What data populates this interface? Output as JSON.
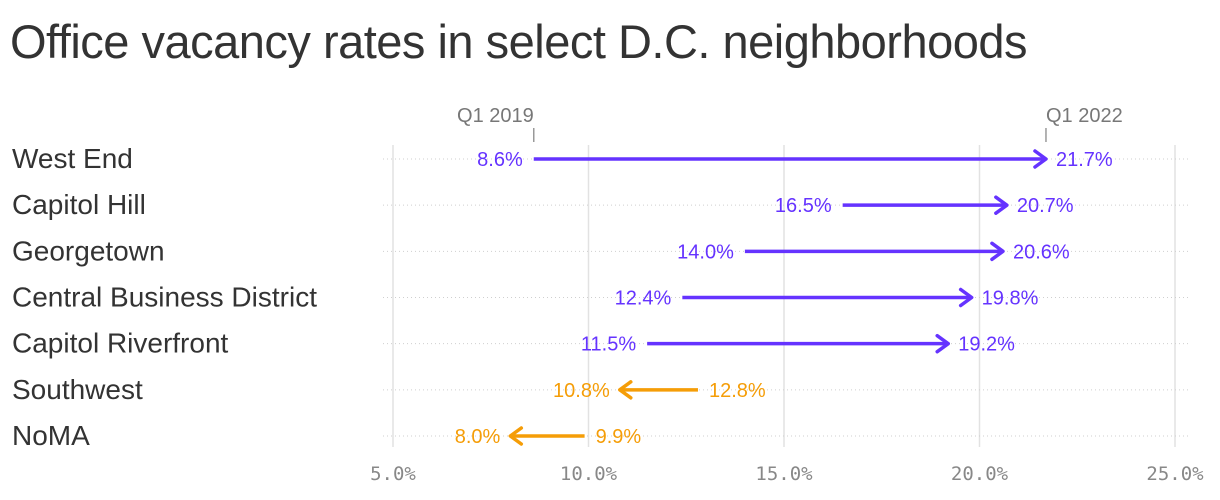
{
  "chart_data": {
    "type": "arrow",
    "title": "Office vacancy rates in select D.C. neighborhoods",
    "from_label": "Q1 2019",
    "to_label": "Q1 2022",
    "x_ticks": [
      "5.0%",
      "10.0%",
      "15.0%",
      "20.0%",
      "25.0%"
    ],
    "xlim": [
      5.0,
      25.0
    ],
    "grid": true,
    "colors": {
      "increase": "#6533ff",
      "decrease": "#f59d07"
    },
    "rows": [
      {
        "name": "West End",
        "from": 8.6,
        "to": 21.7,
        "from_label": "8.6%",
        "to_label": "21.7%"
      },
      {
        "name": "Capitol Hill",
        "from": 16.5,
        "to": 20.7,
        "from_label": "16.5%",
        "to_label": "20.7%"
      },
      {
        "name": "Georgetown",
        "from": 14.0,
        "to": 20.6,
        "from_label": "14.0%",
        "to_label": "20.6%"
      },
      {
        "name": "Central Business District",
        "from": 12.4,
        "to": 19.8,
        "from_label": "12.4%",
        "to_label": "19.8%"
      },
      {
        "name": "Capitol Riverfront",
        "from": 11.5,
        "to": 19.2,
        "from_label": "11.5%",
        "to_label": "19.2%"
      },
      {
        "name": "Southwest",
        "from": 12.8,
        "to": 10.8,
        "from_label": "12.8%",
        "to_label": "10.8%"
      },
      {
        "name": "NoMA",
        "from": 9.9,
        "to": 8.0,
        "from_label": "9.9%",
        "to_label": "8.0%"
      }
    ]
  }
}
